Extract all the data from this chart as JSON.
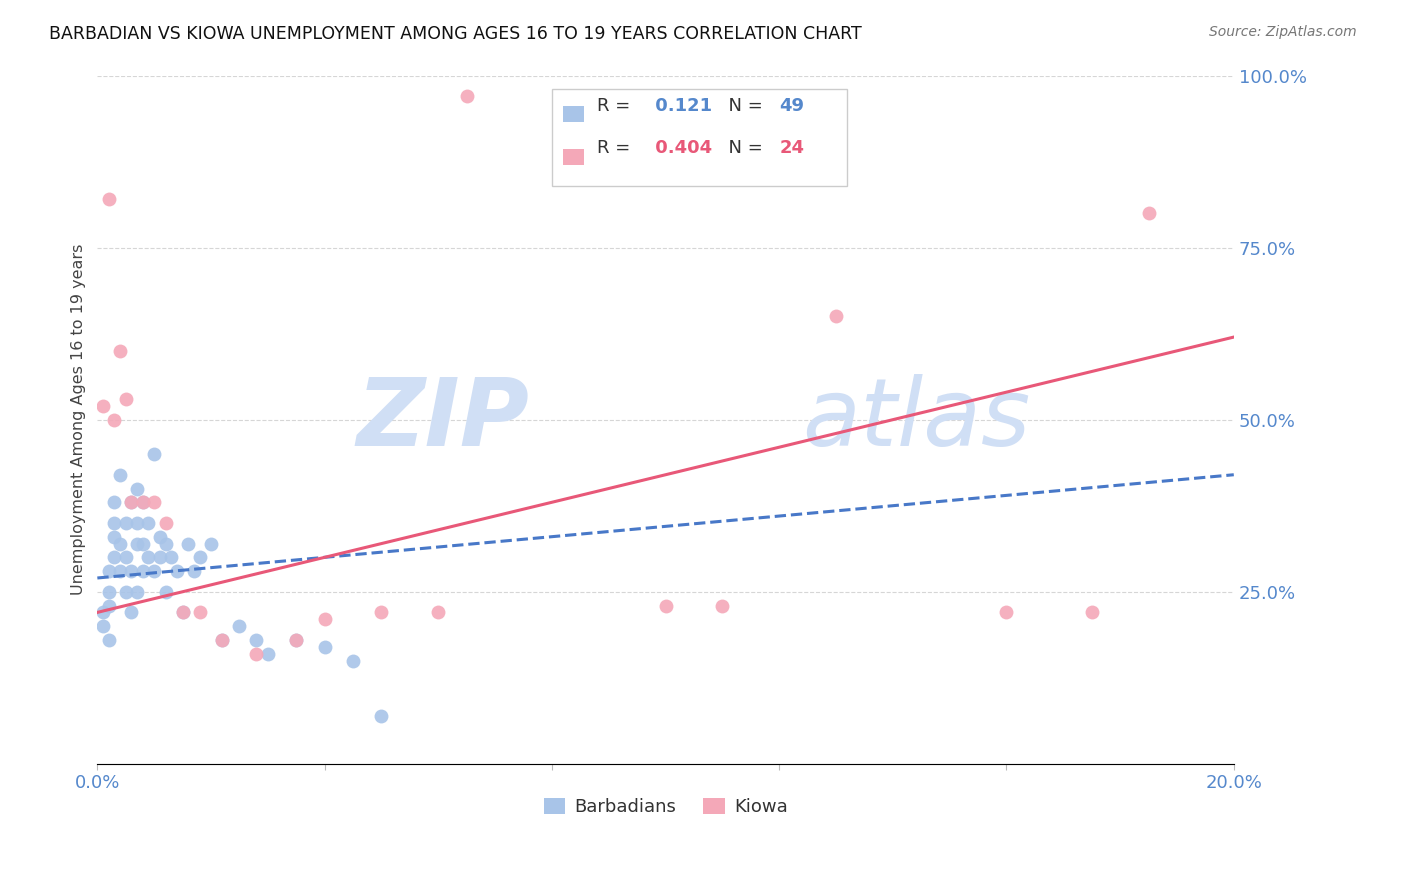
{
  "title": "BARBADIAN VS KIOWA UNEMPLOYMENT AMONG AGES 16 TO 19 YEARS CORRELATION CHART",
  "source_text": "Source: ZipAtlas.com",
  "ylabel": "Unemployment Among Ages 16 to 19 years",
  "xlim": [
    0.0,
    0.2
  ],
  "ylim": [
    0.0,
    1.0
  ],
  "xticks": [
    0.0,
    0.04,
    0.08,
    0.12,
    0.16,
    0.2
  ],
  "xtick_labels": [
    "0.0%",
    "",
    "",
    "",
    "",
    "20.0%"
  ],
  "yticks_right": [
    0.0,
    0.25,
    0.5,
    0.75,
    1.0
  ],
  "ytick_labels_right": [
    "",
    "25.0%",
    "50.0%",
    "75.0%",
    "100.0%"
  ],
  "barbadians_R": 0.121,
  "barbadians_N": 49,
  "kiowa_R": 0.404,
  "kiowa_N": 24,
  "barbadians_color": "#a8c4e8",
  "kiowa_color": "#f4a8b8",
  "barbadians_line_color": "#4878c8",
  "kiowa_line_color": "#e85878",
  "watermark_color": "#d0dff5",
  "background_color": "#ffffff",
  "grid_color": "#cccccc",
  "barbadians_x": [
    0.001,
    0.001,
    0.002,
    0.002,
    0.002,
    0.002,
    0.003,
    0.003,
    0.003,
    0.003,
    0.004,
    0.004,
    0.004,
    0.005,
    0.005,
    0.005,
    0.006,
    0.006,
    0.006,
    0.007,
    0.007,
    0.007,
    0.007,
    0.008,
    0.008,
    0.008,
    0.009,
    0.009,
    0.01,
    0.01,
    0.011,
    0.011,
    0.012,
    0.012,
    0.013,
    0.014,
    0.015,
    0.016,
    0.017,
    0.018,
    0.02,
    0.022,
    0.025,
    0.028,
    0.03,
    0.035,
    0.04,
    0.045,
    0.05
  ],
  "barbadians_y": [
    0.2,
    0.22,
    0.18,
    0.23,
    0.25,
    0.28,
    0.3,
    0.33,
    0.35,
    0.38,
    0.28,
    0.32,
    0.42,
    0.25,
    0.3,
    0.35,
    0.22,
    0.28,
    0.38,
    0.25,
    0.32,
    0.35,
    0.4,
    0.28,
    0.32,
    0.38,
    0.3,
    0.35,
    0.28,
    0.45,
    0.3,
    0.33,
    0.25,
    0.32,
    0.3,
    0.28,
    0.22,
    0.32,
    0.28,
    0.3,
    0.32,
    0.18,
    0.2,
    0.18,
    0.16,
    0.18,
    0.17,
    0.15,
    0.07
  ],
  "kiowa_x": [
    0.001,
    0.002,
    0.003,
    0.004,
    0.005,
    0.006,
    0.008,
    0.01,
    0.012,
    0.015,
    0.018,
    0.022,
    0.028,
    0.035,
    0.04,
    0.05,
    0.06,
    0.065,
    0.1,
    0.11,
    0.13,
    0.16,
    0.175,
    0.185
  ],
  "kiowa_y": [
    0.52,
    0.82,
    0.5,
    0.6,
    0.53,
    0.38,
    0.38,
    0.38,
    0.35,
    0.22,
    0.22,
    0.18,
    0.16,
    0.18,
    0.21,
    0.22,
    0.22,
    0.97,
    0.23,
    0.23,
    0.65,
    0.22,
    0.22,
    0.8
  ],
  "barb_line_intercept": 0.27,
  "barb_line_slope": 0.75,
  "kiowa_line_intercept": 0.22,
  "kiowa_line_slope": 2.0
}
